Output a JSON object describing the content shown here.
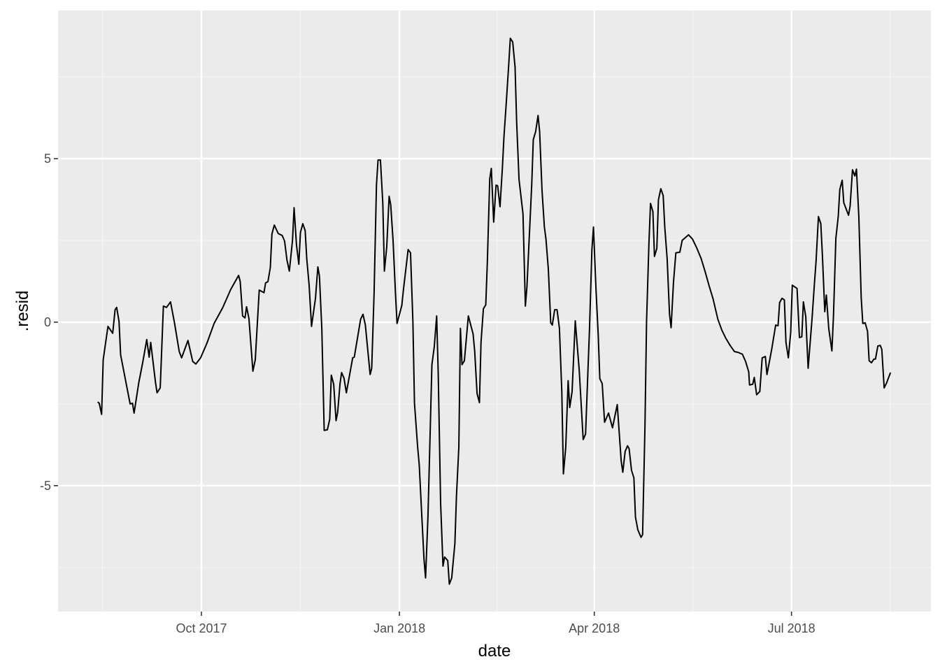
{
  "chart_data": {
    "type": "line",
    "x_label": "date",
    "y_label": ".resid",
    "color": "#000000",
    "grid": true,
    "xlim": [
      2017.569,
      2018.671
    ],
    "ylim": [
      -8.85,
      9.53
    ],
    "xticks": [
      {
        "value": 2017.75,
        "label": "Oct 2017"
      },
      {
        "value": 2018.0,
        "label": "Jan 2018"
      },
      {
        "value": 2018.246,
        "label": "Apr 2018"
      },
      {
        "value": 2018.495,
        "label": "Jul 2018"
      }
    ],
    "yticks": [
      -5,
      0,
      5
    ],
    "x": [
      2017.619,
      2017.621,
      2017.624,
      2017.626,
      2017.632,
      2017.638,
      2017.641,
      2017.643,
      2017.646,
      2017.648,
      2017.66,
      2017.663,
      2017.665,
      2017.671,
      2017.676,
      2017.681,
      2017.684,
      2017.686,
      2017.692,
      2017.694,
      2017.698,
      2017.702,
      2017.706,
      2017.711,
      2017.716,
      2017.722,
      2017.725,
      2017.733,
      2017.739,
      2017.743,
      2017.749,
      2017.757,
      2017.766,
      2017.777,
      2017.787,
      2017.797,
      2017.799,
      2017.802,
      2017.805,
      2017.807,
      2017.81,
      2017.815,
      2017.818,
      2017.823,
      2017.829,
      2017.831,
      2017.834,
      2017.837,
      2017.839,
      2017.842,
      2017.847,
      2017.852,
      2017.855,
      2017.858,
      2017.861,
      2017.865,
      2017.867,
      2017.87,
      2017.873,
      2017.875,
      2017.878,
      2017.881,
      2017.883,
      2017.886,
      2017.889,
      2017.894,
      2017.897,
      2017.899,
      2017.902,
      2017.905,
      2017.909,
      2017.912,
      2017.914,
      2017.917,
      2017.92,
      2017.922,
      2017.925,
      2017.927,
      2017.93,
      2017.933,
      2017.941,
      2017.943,
      2017.951,
      2017.954,
      2017.957,
      2017.963,
      2017.965,
      2017.968,
      2017.971,
      2017.973,
      2017.976,
      2017.979,
      2017.981,
      2017.984,
      2017.987,
      2017.989,
      2017.992,
      2017.995,
      2017.997,
      2018.003,
      2018.005,
      2018.011,
      2018.014,
      2018.017,
      2018.019,
      2018.023,
      2018.025,
      2018.028,
      2018.031,
      2018.033,
      2018.036,
      2018.039,
      2018.041,
      2018.044,
      2018.047,
      2018.049,
      2018.052,
      2018.055,
      2018.057,
      2018.061,
      2018.063,
      2018.066,
      2018.07,
      2018.072,
      2018.075,
      2018.077,
      2018.079,
      2018.082,
      2018.087,
      2018.093,
      2018.095,
      2018.098,
      2018.101,
      2018.103,
      2018.106,
      2018.109,
      2018.111,
      2018.114,
      2018.116,
      2018.119,
      2018.122,
      2018.124,
      2018.127,
      2018.13,
      2018.132,
      2018.135,
      2018.138,
      2018.14,
      2018.143,
      2018.146,
      2018.148,
      2018.151,
      2018.156,
      2018.159,
      2018.161,
      2018.167,
      2018.169,
      2018.172,
      2018.175,
      2018.177,
      2018.18,
      2018.183,
      2018.185,
      2018.188,
      2018.191,
      2018.193,
      2018.196,
      2018.199,
      2018.202,
      2018.205,
      2018.207,
      2018.21,
      2018.213,
      2018.215,
      2018.218,
      2018.222,
      2018.227,
      2018.232,
      2018.235,
      2018.24,
      2018.243,
      2018.245,
      2018.248,
      2018.251,
      2018.253,
      2018.256,
      2018.259,
      2018.264,
      2018.269,
      2018.275,
      2018.28,
      2018.282,
      2018.285,
      2018.288,
      2018.29,
      2018.293,
      2018.296,
      2018.298,
      2018.301,
      2018.305,
      2018.307,
      2018.31,
      2018.312,
      2018.315,
      2018.317,
      2018.32,
      2018.322,
      2018.325,
      2018.327,
      2018.33,
      2018.333,
      2018.335,
      2018.338,
      2018.341,
      2018.343,
      2018.346,
      2018.349,
      2018.354,
      2018.357,
      2018.365,
      2018.37,
      2018.375,
      2018.381,
      2018.386,
      2018.391,
      2018.396,
      2018.402,
      2018.407,
      2018.412,
      2018.418,
      2018.423,
      2018.427,
      2018.433,
      2018.437,
      2018.441,
      2018.442,
      2018.446,
      2018.448,
      2018.451,
      2018.455,
      2018.458,
      2018.462,
      2018.464,
      2018.47,
      2018.475,
      2018.478,
      2018.48,
      2018.483,
      2018.486,
      2018.488,
      2018.491,
      2018.494,
      2018.496,
      2018.502,
      2018.505,
      2018.508,
      2018.51,
      2018.513,
      2018.516,
      2018.521,
      2018.524,
      2018.526,
      2018.529,
      2018.532,
      2018.534,
      2018.537,
      2018.539,
      2018.542,
      2018.546,
      2018.548,
      2018.551,
      2018.554,
      2018.556,
      2018.559,
      2018.561,
      2018.567,
      2018.569,
      2018.572,
      2018.575,
      2018.577,
      2018.58,
      2018.583,
      2018.585,
      2018.588,
      2018.591,
      2018.593,
      2018.596,
      2018.599,
      2018.601,
      2018.604,
      2018.607,
      2018.609,
      2018.612,
      2018.615,
      2018.62
    ],
    "values": [
      -2.44,
      -2.48,
      -2.82,
      -1.15,
      -0.13,
      -0.34,
      0.38,
      0.45,
      0.02,
      -1.0,
      -2.5,
      -2.48,
      -2.78,
      -1.84,
      -1.22,
      -0.53,
      -1.07,
      -0.62,
      -1.84,
      -2.16,
      -2.01,
      0.49,
      0.45,
      0.62,
      -0.02,
      -0.9,
      -1.09,
      -0.56,
      -1.2,
      -1.28,
      -1.09,
      -0.64,
      -0.04,
      0.45,
      1.0,
      1.43,
      1.24,
      0.19,
      0.13,
      0.47,
      0.11,
      -1.5,
      -1.15,
      0.98,
      0.9,
      1.2,
      1.24,
      1.67,
      2.69,
      2.97,
      2.71,
      2.65,
      2.48,
      1.9,
      1.56,
      2.5,
      3.5,
      2.37,
      1.77,
      2.74,
      3.01,
      2.8,
      1.94,
      1.13,
      -0.13,
      0.73,
      1.69,
      1.41,
      -0.19,
      -3.31,
      -3.29,
      -2.97,
      -1.62,
      -1.9,
      -3.01,
      -2.76,
      -1.88,
      -1.54,
      -1.71,
      -2.16,
      -1.09,
      -1.07,
      0.09,
      0.24,
      -0.09,
      -1.6,
      -1.41,
      0.88,
      4.19,
      4.96,
      4.96,
      3.65,
      1.56,
      2.31,
      3.85,
      3.59,
      2.48,
      0.88,
      -0.04,
      0.51,
      0.98,
      2.22,
      2.12,
      0.02,
      -2.48,
      -3.82,
      -4.36,
      -5.81,
      -7.24,
      -7.82,
      -5.96,
      -3.18,
      -1.3,
      -0.75,
      0.19,
      -1.58,
      -5.53,
      -7.46,
      -7.18,
      -7.29,
      -8.01,
      -7.82,
      -6.77,
      -5.32,
      -3.82,
      -0.19,
      -1.3,
      -1.18,
      0.19,
      -0.36,
      -0.88,
      -2.18,
      -2.46,
      -0.62,
      0.41,
      0.53,
      1.84,
      4.38,
      4.7,
      3.06,
      4.19,
      4.17,
      3.53,
      4.72,
      5.68,
      6.75,
      7.88,
      8.68,
      8.57,
      7.8,
      6.11,
      4.36,
      3.31,
      0.49,
      1.09,
      4.19,
      5.58,
      5.83,
      6.32,
      5.83,
      4.04,
      2.91,
      2.54,
      1.62,
      -0.02,
      -0.09,
      0.38,
      0.38,
      -0.19,
      -2.12,
      -4.64,
      -3.82,
      -1.79,
      -2.61,
      -2.12,
      0.04,
      -1.47,
      -3.59,
      -3.42,
      -0.19,
      2.22,
      2.91,
      1.09,
      -0.41,
      -1.73,
      -1.88,
      -3.06,
      -2.78,
      -3.23,
      -2.52,
      -4.25,
      -4.59,
      -3.95,
      -3.78,
      -3.87,
      -4.53,
      -4.76,
      -5.96,
      -6.35,
      -6.58,
      -6.5,
      -3.18,
      0.02,
      2.41,
      3.63,
      3.38,
      2.01,
      2.26,
      3.74,
      4.08,
      3.87,
      2.91,
      1.94,
      0.24,
      -0.17,
      1.22,
      2.12,
      2.14,
      2.5,
      2.67,
      2.54,
      2.29,
      1.94,
      1.54,
      1.11,
      0.71,
      0.09,
      -0.24,
      -0.49,
      -0.73,
      -0.9,
      -0.92,
      -0.98,
      -1.2,
      -1.52,
      -1.92,
      -1.9,
      -1.69,
      -2.22,
      -2.12,
      -1.09,
      -1.05,
      -1.6,
      -0.83,
      -0.09,
      -0.11,
      0.6,
      0.73,
      0.68,
      -0.62,
      -1.09,
      -0.32,
      1.13,
      1.03,
      -0.47,
      -0.45,
      0.62,
      0.17,
      -1.41,
      0.13,
      1.2,
      1.86,
      3.23,
      3.01,
      2.05,
      0.32,
      0.83,
      -0.19,
      -0.88,
      0.19,
      2.56,
      3.23,
      4.06,
      4.34,
      3.65,
      3.27,
      3.55,
      4.66,
      4.47,
      4.68,
      3.23,
      0.75,
      -0.04,
      -0.02,
      -0.28,
      -1.18,
      -1.24,
      -1.13,
      -1.13,
      -0.73,
      -0.71,
      -0.83,
      -2.01,
      -1.86,
      -1.54
    ]
  }
}
